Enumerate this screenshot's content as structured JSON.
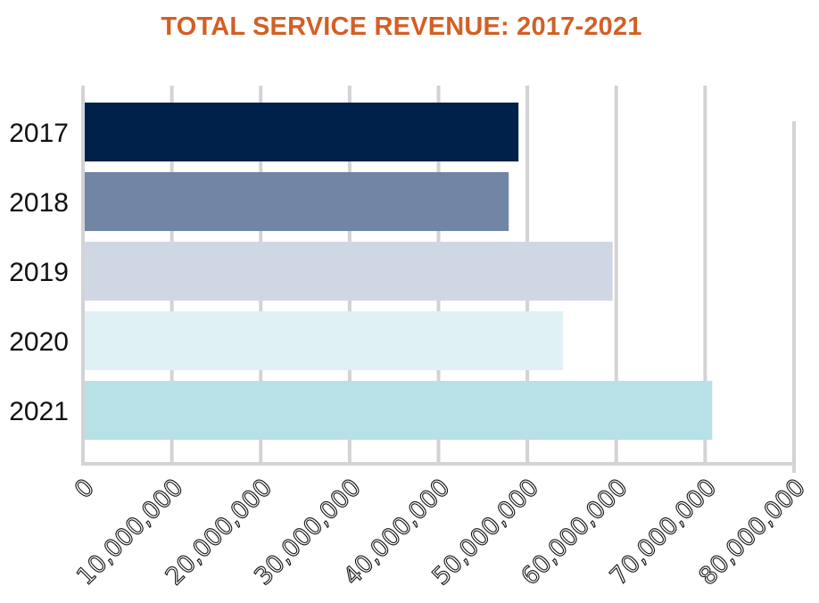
{
  "chart_data": {
    "type": "bar",
    "orientation": "horizontal",
    "title": "TOTAL SERVICE REVENUE: 2017-2021",
    "xlabel": "",
    "ylabel": "",
    "categories": [
      "2017",
      "2018",
      "2019",
      "2020",
      "2021"
    ],
    "values": [
      49000000,
      47900000,
      59600000,
      54000000,
      70800000
    ],
    "bar_colors": [
      "#00214a",
      "#7185a5",
      "#d0d7e4",
      "#dff1f4",
      "#b7e1e7"
    ],
    "xlim": [
      0,
      80000000
    ],
    "xticks": [
      0,
      10000000,
      20000000,
      30000000,
      40000000,
      50000000,
      60000000,
      70000000,
      80000000
    ],
    "xtick_labels": [
      "0",
      "10,000,000",
      "20,000,000",
      "30,000,000",
      "40,000,000",
      "50,000,000",
      "60,000,000",
      "70,000,000",
      "80,000,000"
    ],
    "grid": true,
    "legend": "none",
    "title_color": "#d35f24",
    "grid_color": "#d3d3d5"
  }
}
